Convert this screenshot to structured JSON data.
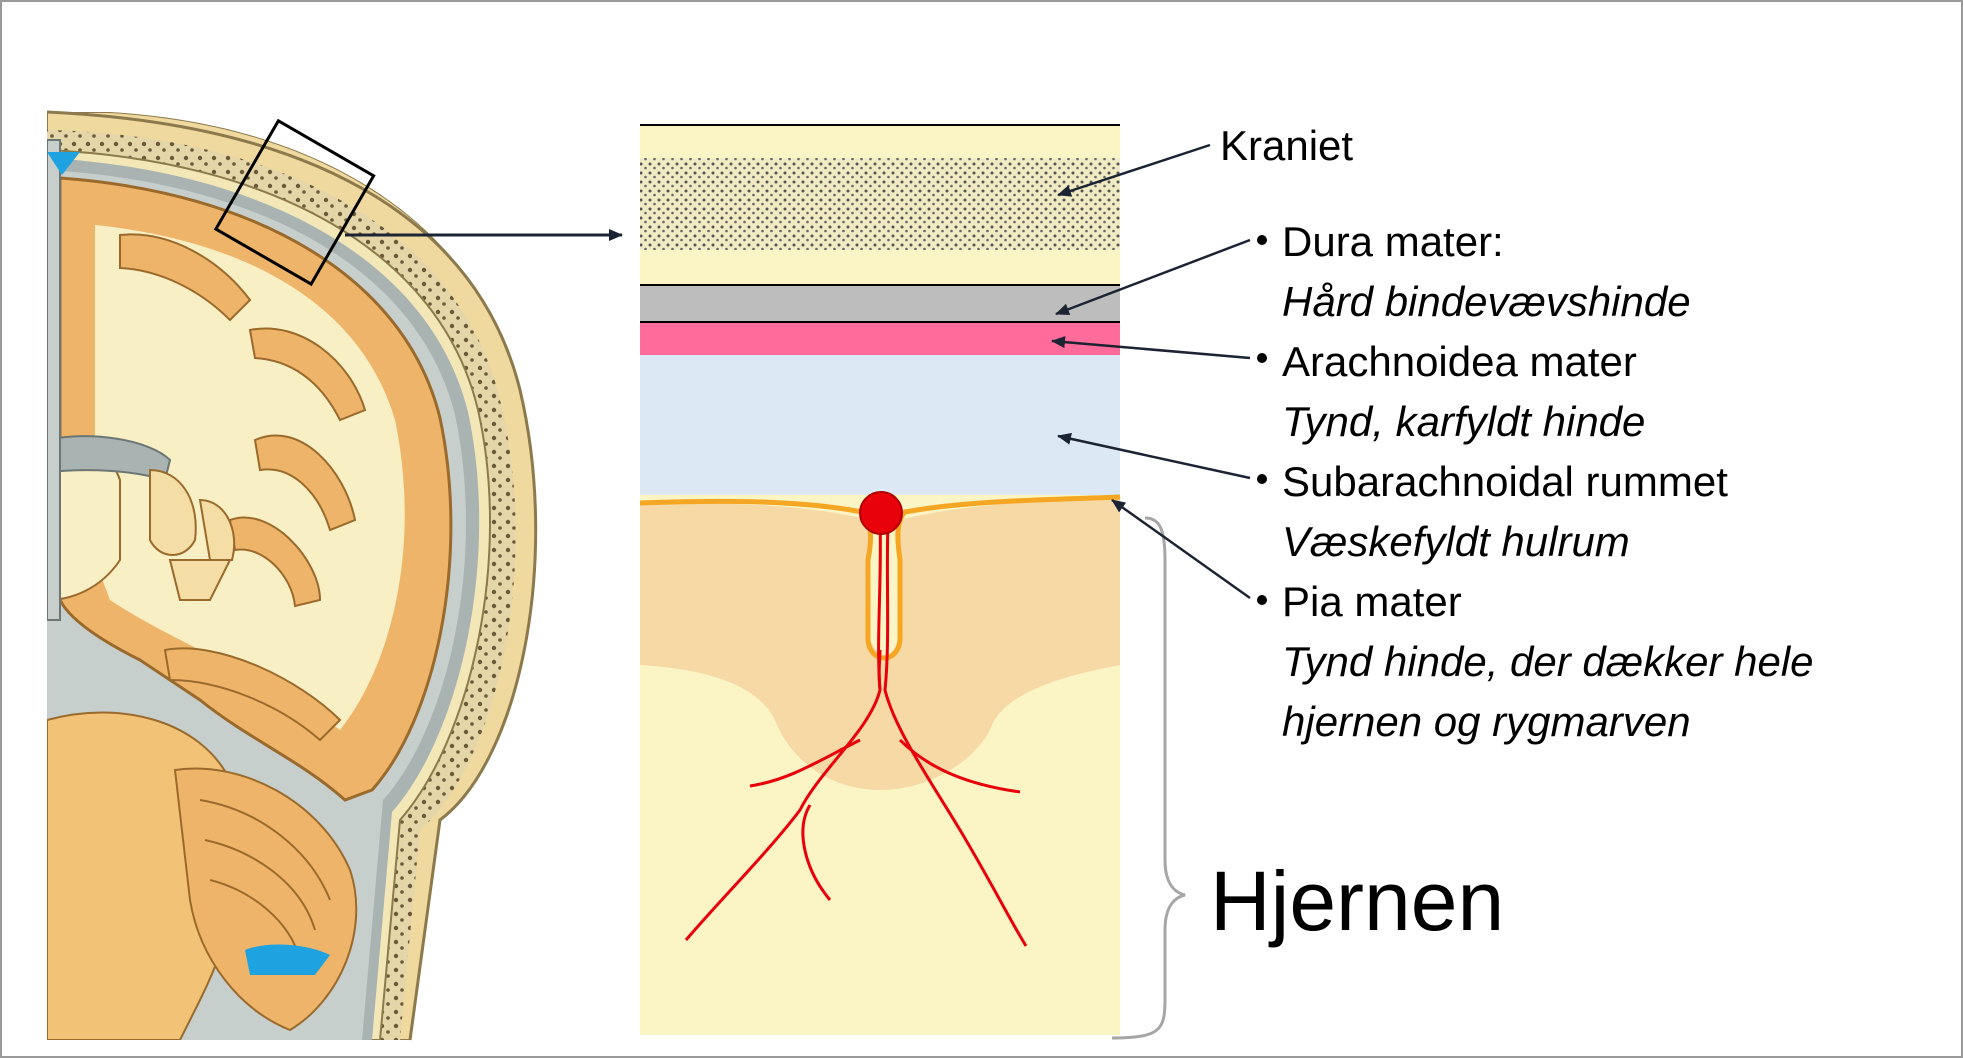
{
  "labels": {
    "skull": "Kraniet",
    "dura": "Dura mater:",
    "dura_desc": "Hård bindevævshinde",
    "arachnoid": "Arachnoidea mater",
    "arachnoid_desc": "Tynd, karfyldt hinde",
    "subarachnoid": "Subarachnoidal rummet",
    "subarachnoid_desc": "Væskefyldt hulrum",
    "pia": "Pia mater",
    "pia_desc_line1": "Tynd hinde, der dækker hele",
    "pia_desc_line2": "hjernen og rygmarven",
    "brain": "Hjernen"
  },
  "colors": {
    "bone": "#fbf5c6",
    "dura": "#bdbdbd",
    "arachnoid": "#ff6b9a",
    "subarachnoid": "#dce8f3",
    "cortex": "#f7d9a6",
    "pia": "#f5a623",
    "vessel": "#e8000b",
    "illustration_cortex": "#eeb56a",
    "illustration_white": "#f9efc4",
    "csf_blue": "#1fa3e0",
    "frame": "#9a9a9a"
  }
}
